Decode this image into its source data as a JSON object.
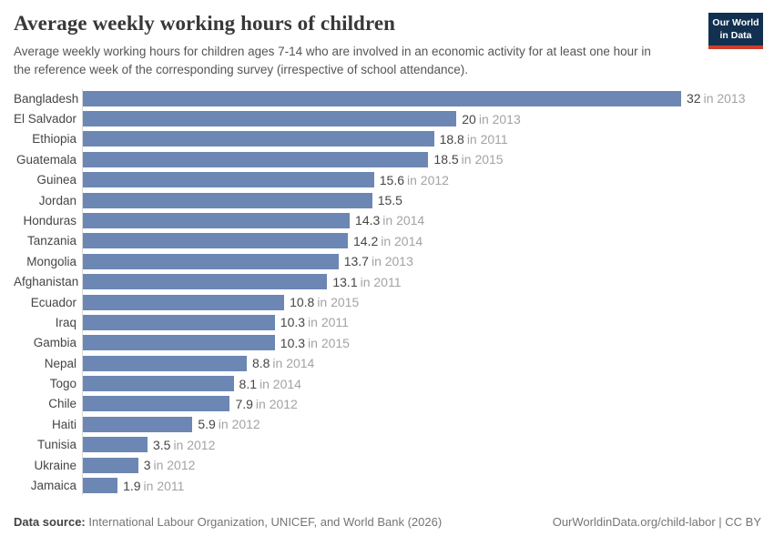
{
  "header": {
    "title": "Average weekly working hours of children",
    "subtitle": "Average weekly working hours for children ages 7-14 who are involved in an economic activity for at least one hour in the reference week of the corresponding survey (irrespective of school attendance).",
    "logo": {
      "line1": "Our World",
      "line2": "in Data"
    }
  },
  "chart_data": {
    "type": "bar",
    "orientation": "horizontal",
    "title": "Average weekly working hours of children",
    "xlabel": "",
    "ylabel": "",
    "xlim": [
      0,
      32
    ],
    "grid": false,
    "bar_color": "#6c87b3",
    "axis_color": "#dadada",
    "categories": [
      "Bangladesh",
      "El Salvador",
      "Ethiopia",
      "Guatemala",
      "Guinea",
      "Jordan",
      "Honduras",
      "Tanzania",
      "Mongolia",
      "Afghanistan",
      "Ecuador",
      "Iraq",
      "Gambia",
      "Nepal",
      "Togo",
      "Chile",
      "Haiti",
      "Tunisia",
      "Ukraine",
      "Jamaica"
    ],
    "values": [
      32,
      20,
      18.8,
      18.5,
      15.6,
      15.5,
      14.3,
      14.2,
      13.7,
      13.1,
      10.8,
      10.3,
      10.3,
      8.8,
      8.1,
      7.9,
      5.9,
      3.5,
      3,
      1.9
    ],
    "rows": [
      {
        "label": "Bangladesh",
        "value": 32,
        "value_label": "32",
        "year_label": "in 2013"
      },
      {
        "label": "El Salvador",
        "value": 20,
        "value_label": "20",
        "year_label": "in 2013"
      },
      {
        "label": "Ethiopia",
        "value": 18.8,
        "value_label": "18.8",
        "year_label": "in 2011"
      },
      {
        "label": "Guatemala",
        "value": 18.5,
        "value_label": "18.5",
        "year_label": "in 2015"
      },
      {
        "label": "Guinea",
        "value": 15.6,
        "value_label": "15.6",
        "year_label": "in 2012"
      },
      {
        "label": "Jordan",
        "value": 15.5,
        "value_label": "15.5",
        "year_label": ""
      },
      {
        "label": "Honduras",
        "value": 14.3,
        "value_label": "14.3",
        "year_label": "in 2014"
      },
      {
        "label": "Tanzania",
        "value": 14.2,
        "value_label": "14.2",
        "year_label": "in 2014"
      },
      {
        "label": "Mongolia",
        "value": 13.7,
        "value_label": "13.7",
        "year_label": "in 2013"
      },
      {
        "label": "Afghanistan",
        "value": 13.1,
        "value_label": "13.1",
        "year_label": "in 2011"
      },
      {
        "label": "Ecuador",
        "value": 10.8,
        "value_label": "10.8",
        "year_label": "in 2015"
      },
      {
        "label": "Iraq",
        "value": 10.3,
        "value_label": "10.3",
        "year_label": "in 2011"
      },
      {
        "label": "Gambia",
        "value": 10.3,
        "value_label": "10.3",
        "year_label": "in 2015"
      },
      {
        "label": "Nepal",
        "value": 8.8,
        "value_label": "8.8",
        "year_label": "in 2014"
      },
      {
        "label": "Togo",
        "value": 8.1,
        "value_label": "8.1",
        "year_label": "in 2014"
      },
      {
        "label": "Chile",
        "value": 7.9,
        "value_label": "7.9",
        "year_label": "in 2012"
      },
      {
        "label": "Haiti",
        "value": 5.9,
        "value_label": "5.9",
        "year_label": "in 2012"
      },
      {
        "label": "Tunisia",
        "value": 3.5,
        "value_label": "3.5",
        "year_label": "in 2012"
      },
      {
        "label": "Ukraine",
        "value": 3,
        "value_label": "3",
        "year_label": "in 2012"
      },
      {
        "label": "Jamaica",
        "value": 1.9,
        "value_label": "1.9",
        "year_label": "in 2011"
      }
    ]
  },
  "footer": {
    "source_prefix": "Data source:",
    "source_text": " International Labour Organization, UNICEF, and World Bank (2026)",
    "right_text": "OurWorldinData.org/child-labor | CC BY"
  }
}
